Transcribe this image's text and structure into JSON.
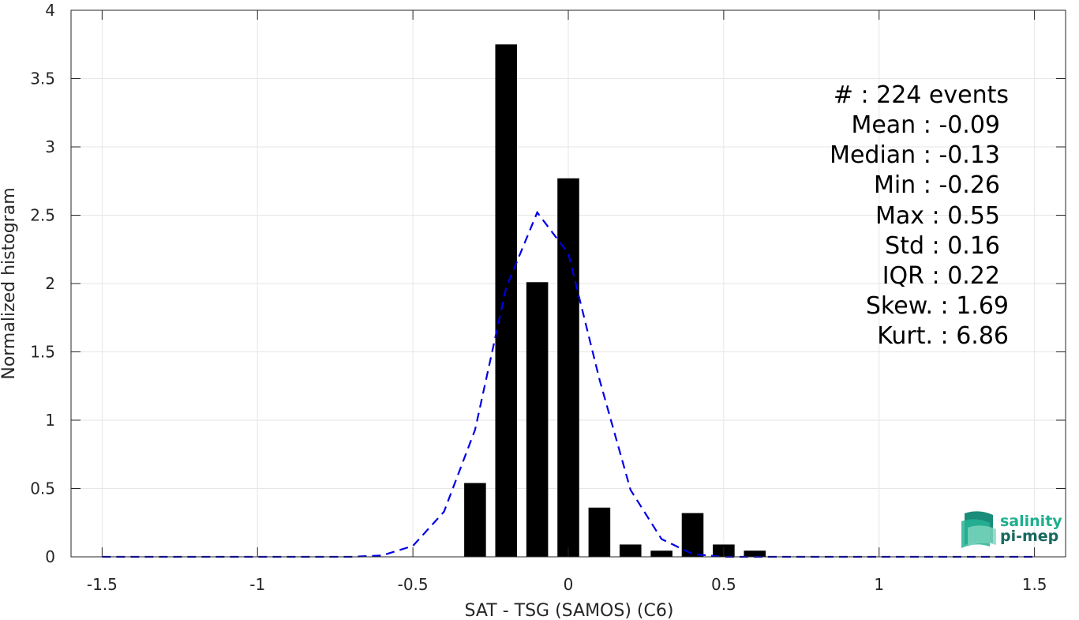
{
  "chart_data": {
    "type": "bar",
    "xlabel": "SAT - TSG (SAMOS) (C6)",
    "ylabel": "Normalized histogram",
    "xlim": [
      -1.6,
      1.6
    ],
    "ylim": [
      0,
      4
    ],
    "xticks": [
      -1.5,
      -1,
      -0.5,
      0,
      0.5,
      1,
      1.5
    ],
    "xtick_labels": [
      "-1.5",
      "-1",
      "-0.5",
      "0",
      "0.5",
      "1",
      "1.5"
    ],
    "yticks": [
      0,
      0.5,
      1,
      1.5,
      2,
      2.5,
      3,
      3.5,
      4
    ],
    "ytick_labels": [
      "0",
      "0.5",
      "1",
      "1.5",
      "2",
      "2.5",
      "3",
      "3.5",
      "4"
    ],
    "grid": true,
    "bar_width": 0.07,
    "bars": [
      {
        "x": -0.3,
        "value": 0.54
      },
      {
        "x": -0.2,
        "value": 3.75
      },
      {
        "x": -0.1,
        "value": 2.01
      },
      {
        "x": 0.0,
        "value": 2.77
      },
      {
        "x": 0.1,
        "value": 0.36
      },
      {
        "x": 0.2,
        "value": 0.09
      },
      {
        "x": 0.3,
        "value": 0.045
      },
      {
        "x": 0.4,
        "value": 0.32
      },
      {
        "x": 0.5,
        "value": 0.09
      },
      {
        "x": 0.6,
        "value": 0.045
      }
    ],
    "fit_curve": {
      "style": "dashed",
      "color": "#0000e6",
      "x": [
        -1.5,
        -1.4,
        -1.3,
        -1.2,
        -1.1,
        -1.0,
        -0.9,
        -0.8,
        -0.7,
        -0.6,
        -0.5,
        -0.4,
        -0.3,
        -0.2,
        -0.1,
        0.0,
        0.1,
        0.2,
        0.3,
        0.4,
        0.5,
        0.6,
        0.7,
        0.8,
        0.9,
        1.0,
        1.1,
        1.2,
        1.3,
        1.4,
        1.5
      ],
      "y": [
        0,
        0,
        0,
        0,
        0,
        0,
        0,
        0,
        0,
        0.01,
        0.08,
        0.33,
        0.93,
        1.97,
        2.52,
        2.22,
        1.3,
        0.49,
        0.13,
        0.02,
        0,
        0,
        0,
        0,
        0,
        0,
        0,
        0,
        0,
        0,
        0
      ]
    },
    "colors": {
      "bars": "#000000",
      "fit": "#0000e6",
      "grid": "#e6e6e6",
      "axis": "#262626"
    }
  },
  "stats": [
    {
      "label": "#  : 224 events"
    },
    {
      "label": "Mean : -0.09"
    },
    {
      "label": "Median : -0.13"
    },
    {
      "label": "Min : -0.26"
    },
    {
      "label": "Max : 0.55"
    },
    {
      "label": "Std : 0.16"
    },
    {
      "label": "IQR : 0.22"
    },
    {
      "label": "Skew. : 1.69"
    },
    {
      "label": "Kurt. : 6.86"
    }
  ],
  "logo": {
    "line1": "salinity",
    "line2": "pi-mep",
    "color1": "#1fae8f",
    "color2": "#17695f"
  }
}
